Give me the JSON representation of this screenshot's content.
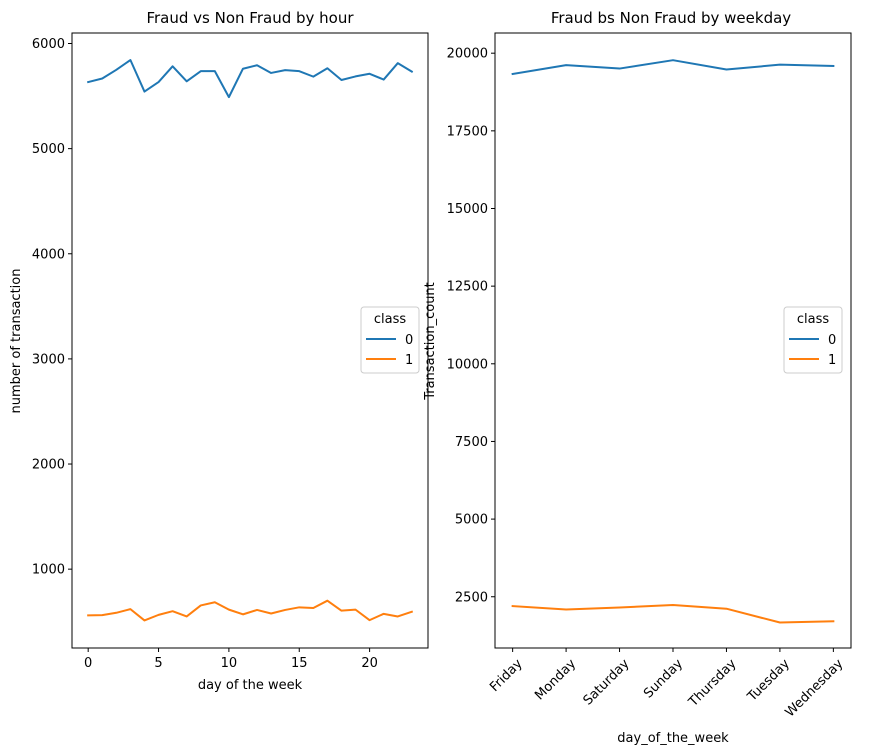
{
  "colors": {
    "series0": "#1f77b4",
    "series1": "#ff7f0e",
    "axis": "#000000",
    "legend_border": "#cccccc"
  },
  "chart_data": [
    {
      "type": "line",
      "title": "Fraud vs Non Fraud by hour",
      "xlabel": "day of the week",
      "ylabel": "number of transaction",
      "xlim": [
        -1.15,
        24.15
      ],
      "ylim": [
        250,
        6100
      ],
      "xticks": [
        0,
        5,
        10,
        15,
        20
      ],
      "xtick_labels": [
        "0",
        "5",
        "10",
        "15",
        "20"
      ],
      "yticks": [
        1000,
        2000,
        3000,
        4000,
        5000,
        6000
      ],
      "ytick_labels": [
        "1000",
        "2000",
        "3000",
        "4000",
        "5000",
        "6000"
      ],
      "grid": false,
      "legend": {
        "title": "class",
        "placement": "center-right"
      },
      "x": [
        0,
        1,
        2,
        3,
        4,
        5,
        6,
        7,
        8,
        9,
        10,
        11,
        12,
        13,
        14,
        15,
        16,
        17,
        18,
        19,
        20,
        21,
        22,
        23
      ],
      "series": [
        {
          "name": "0",
          "color": "#1f77b4",
          "values": [
            5633,
            5667,
            5750,
            5843,
            5543,
            5633,
            5783,
            5640,
            5737,
            5737,
            5490,
            5760,
            5793,
            5720,
            5747,
            5737,
            5685,
            5765,
            5653,
            5687,
            5712,
            5657,
            5813,
            5733
          ]
        },
        {
          "name": "1",
          "color": "#ff7f0e",
          "values": [
            560,
            563,
            585,
            620,
            512,
            565,
            600,
            550,
            655,
            685,
            615,
            570,
            612,
            578,
            612,
            637,
            630,
            700,
            605,
            615,
            515,
            575,
            550,
            595
          ]
        }
      ]
    },
    {
      "type": "line",
      "title": "Fraud bs Non Fraud by weekday",
      "xlabel": "day_of_the_week",
      "ylabel": "Transaction_count",
      "xlim": [
        -0.33,
        6.33
      ],
      "ylim": [
        850,
        20650
      ],
      "categories": [
        "Friday",
        "Monday",
        "Saturday",
        "Sunday",
        "Thursday",
        "Tuesday",
        "Wednesday"
      ],
      "yticks": [
        2500,
        5000,
        7500,
        10000,
        12500,
        15000,
        17500,
        20000
      ],
      "ytick_labels": [
        "2500",
        "5000",
        "7500",
        "10000",
        "12500",
        "15000",
        "17500",
        "20000"
      ],
      "grid": false,
      "legend": {
        "title": "class",
        "placement": "center-right"
      },
      "series": [
        {
          "name": "0",
          "color": "#1f77b4",
          "values": [
            19330,
            19615,
            19505,
            19775,
            19475,
            19630,
            19590
          ]
        },
        {
          "name": "1",
          "color": "#ff7f0e",
          "values": [
            2200,
            2090,
            2155,
            2235,
            2115,
            1670,
            1710
          ]
        }
      ]
    }
  ]
}
